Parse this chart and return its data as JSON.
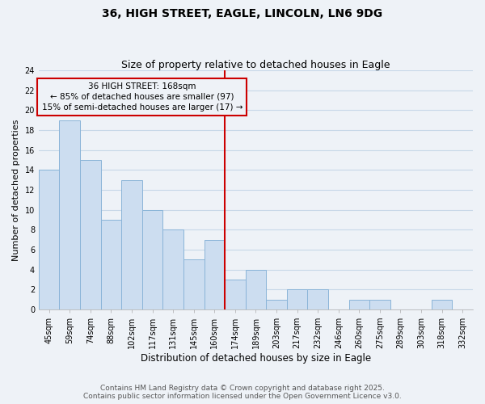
{
  "title": "36, HIGH STREET, EAGLE, LINCOLN, LN6 9DG",
  "subtitle": "Size of property relative to detached houses in Eagle",
  "xlabel": "Distribution of detached houses by size in Eagle",
  "ylabel": "Number of detached properties",
  "bar_labels": [
    "45sqm",
    "59sqm",
    "74sqm",
    "88sqm",
    "102sqm",
    "117sqm",
    "131sqm",
    "145sqm",
    "160sqm",
    "174sqm",
    "189sqm",
    "203sqm",
    "217sqm",
    "232sqm",
    "246sqm",
    "260sqm",
    "275sqm",
    "289sqm",
    "303sqm",
    "318sqm",
    "332sqm"
  ],
  "bar_values": [
    14,
    19,
    15,
    9,
    13,
    10,
    8,
    5,
    7,
    3,
    4,
    1,
    2,
    2,
    0,
    1,
    1,
    0,
    0,
    1,
    0
  ],
  "bar_color": "#ccddf0",
  "bar_edge_color": "#8ab4d8",
  "grid_color": "#c8d8e8",
  "background_color": "#eef2f7",
  "annotation_box_color": "#cc0000",
  "annotation_line_color": "#cc0000",
  "vline_x_index": 8.5,
  "annotation_title": "36 HIGH STREET: 168sqm",
  "annotation_line1": "← 85% of detached houses are smaller (97)",
  "annotation_line2": "15% of semi-detached houses are larger (17) →",
  "ylim": [
    0,
    24
  ],
  "yticks": [
    0,
    2,
    4,
    6,
    8,
    10,
    12,
    14,
    16,
    18,
    20,
    22,
    24
  ],
  "footer_line1": "Contains HM Land Registry data © Crown copyright and database right 2025.",
  "footer_line2": "Contains public sector information licensed under the Open Government Licence v3.0.",
  "title_fontsize": 10,
  "subtitle_fontsize": 9,
  "footer_fontsize": 6.5,
  "tick_fontsize": 7,
  "ylabel_fontsize": 8,
  "xlabel_fontsize": 8.5
}
